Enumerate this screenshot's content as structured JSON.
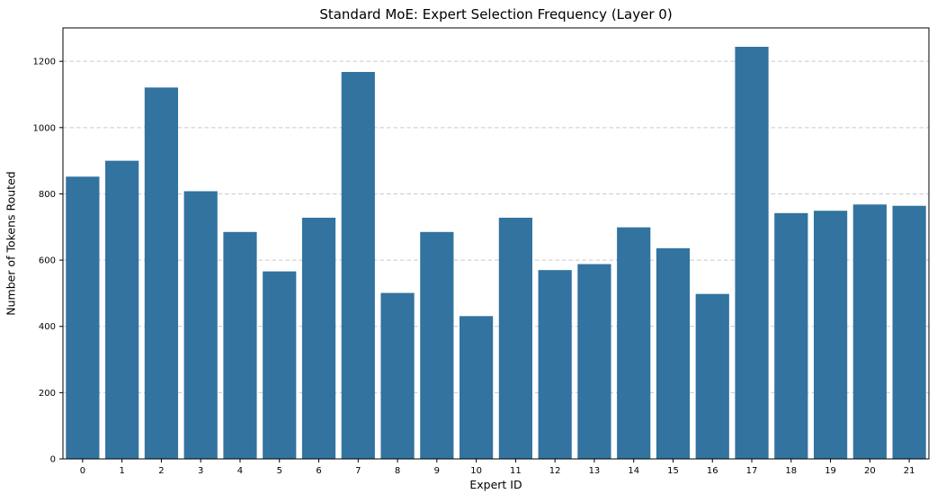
{
  "figure": {
    "background": "#ffffff",
    "bar_color": "#32739f",
    "grid_color": "#c9c9c9",
    "axis_color": "#000000",
    "tick_label_color": "#000000"
  },
  "chart_data": {
    "type": "bar",
    "title": "Standard MoE: Expert Selection Frequency (Layer 0)",
    "xlabel": "Expert ID",
    "ylabel": "Number of Tokens Routed",
    "categories": [
      "0",
      "1",
      "2",
      "3",
      "4",
      "5",
      "6",
      "7",
      "8",
      "9",
      "10",
      "11",
      "12",
      "13",
      "14",
      "15",
      "16",
      "17",
      "18",
      "19",
      "20",
      "21"
    ],
    "values": [
      852,
      900,
      1121,
      808,
      685,
      566,
      728,
      1168,
      501,
      685,
      431,
      728,
      570,
      588,
      699,
      636,
      498,
      1244,
      742,
      749,
      768,
      764
    ],
    "yticks": [
      0,
      200,
      400,
      600,
      800,
      1000,
      1200
    ],
    "ylim": [
      0,
      1301
    ],
    "grid": "horizontal-dashed",
    "legend": "none"
  }
}
